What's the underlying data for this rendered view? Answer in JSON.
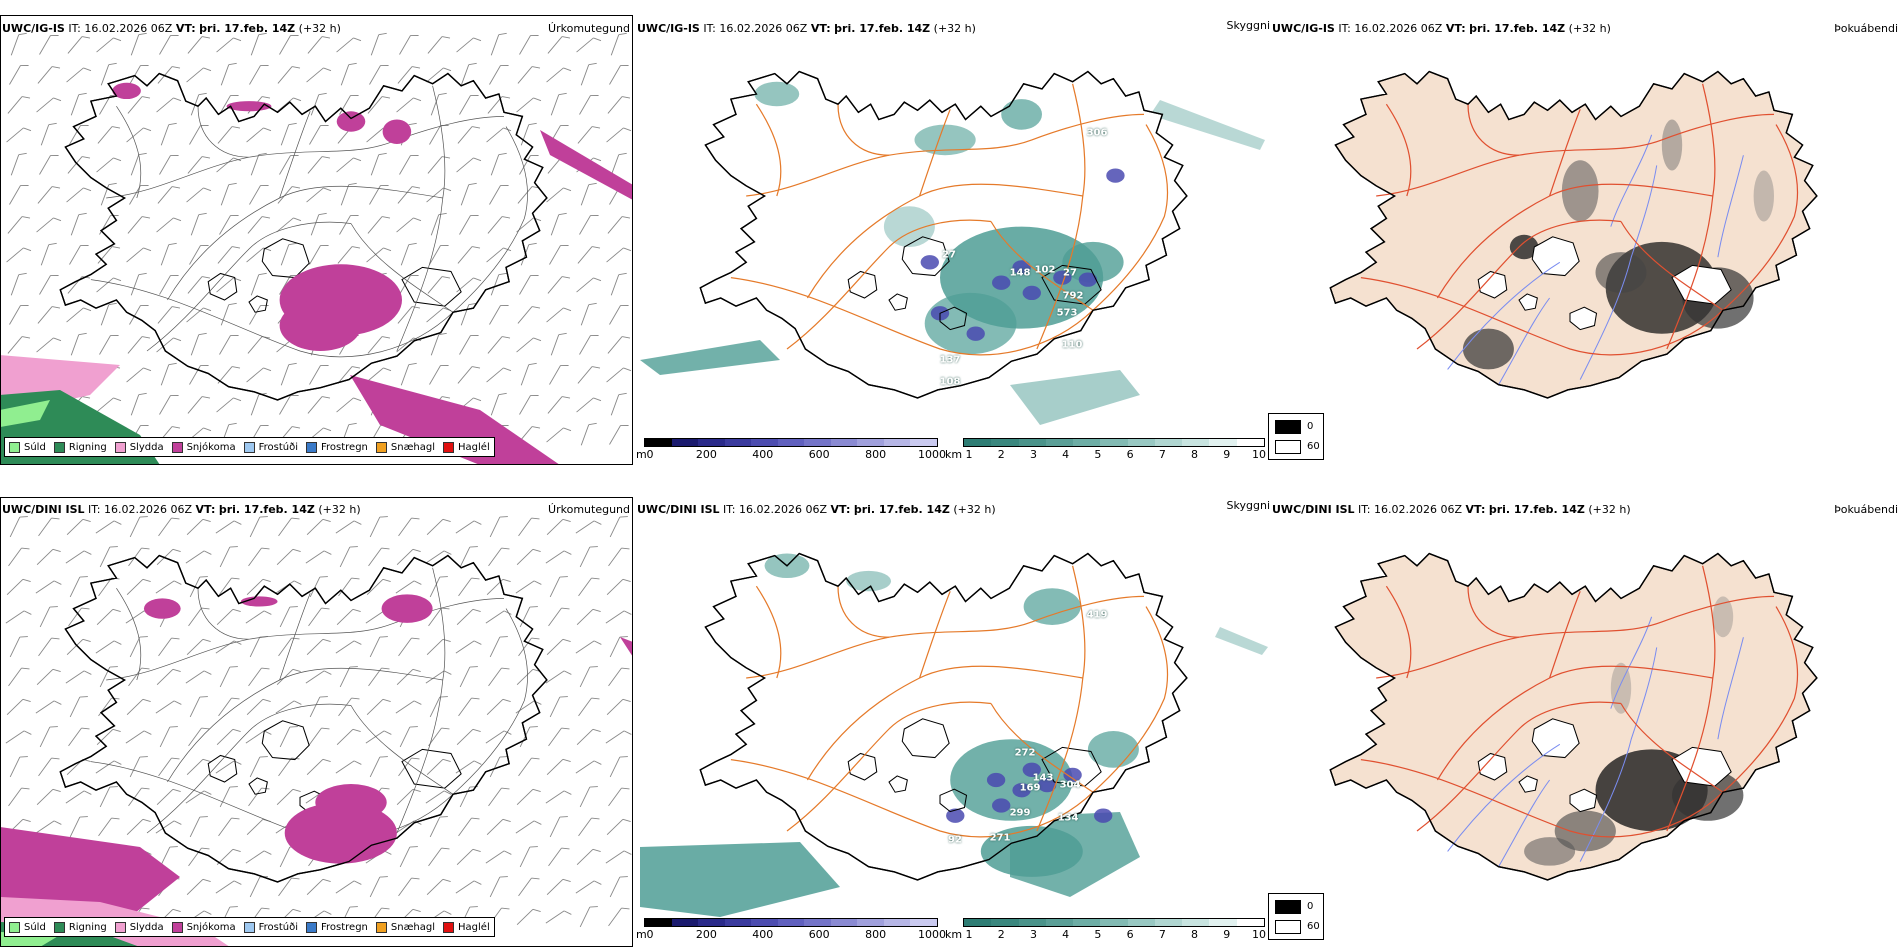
{
  "rows": [
    {
      "model": "UWC/IG-IS",
      "it_label": "IT:",
      "it_value": "16.02.2026 06Z",
      "vt_label": "VT:",
      "vt_value": "þri. 17.feb. 14Z",
      "lead": "(+32 h)",
      "cloud_labels": [
        "306",
        "27",
        "148",
        "102",
        "27",
        "792",
        "573",
        "110",
        "137",
        "108"
      ]
    },
    {
      "model": "UWC/DINI ISL",
      "it_label": "IT:",
      "it_value": "16.02.2026 06Z",
      "vt_label": "VT:",
      "vt_value": "þri. 17.feb. 14Z",
      "lead": "(+32 h)",
      "cloud_labels": [
        "419",
        "272",
        "143",
        "304",
        "169",
        "299",
        "134",
        "271",
        "92"
      ]
    }
  ],
  "panel_titles": {
    "precip": "Úrkomutegund",
    "visibility": "Skyggni",
    "fog": "Þokuábendi"
  },
  "precip_legend": [
    {
      "label": "Súld",
      "color": "#90ee90"
    },
    {
      "label": "Rigning",
      "color": "#2e8b57"
    },
    {
      "label": "Slydda",
      "color": "#f0a0d0"
    },
    {
      "label": "Snjókoma",
      "color": "#c0409a"
    },
    {
      "label": "Frostúði",
      "color": "#9ec8f0"
    },
    {
      "label": "Frostregn",
      "color": "#3a7ac8"
    },
    {
      "label": "Snæhagl",
      "color": "#f0a020"
    },
    {
      "label": "Haglél",
      "color": "#e01010"
    }
  ],
  "cloudbase_scale": {
    "unit": "m",
    "ticks": [
      "0",
      "200",
      "400",
      "600",
      "800",
      "1000"
    ],
    "colors": [
      "#000000",
      "#1a1a6e",
      "#2a2a8a",
      "#3b3b9e",
      "#4d4db0",
      "#6060be",
      "#7474c8",
      "#8a8ad2",
      "#a0a0dc",
      "#b6b6e6",
      "#cacaf0"
    ]
  },
  "visibility_scale": {
    "unit": "km",
    "ticks": [
      "1",
      "2",
      "3",
      "4",
      "5",
      "6",
      "7",
      "8",
      "9",
      "10"
    ],
    "colors": [
      "#2e7d74",
      "#3a877e",
      "#4a938a",
      "#5b9f97",
      "#6dada5",
      "#82bab3",
      "#98c8c2",
      "#b0d6d1",
      "#c8e4e0",
      "#e2f2f0",
      "#ffffff"
    ]
  },
  "fog_legend": {
    "black_label": "0",
    "white_label": "60"
  },
  "colors": {
    "snow": "#c0409a",
    "sleet": "#f0a0d0",
    "rain": "#2e8b57",
    "drizzle": "#90ee90",
    "land_fog": "#f5e1d0",
    "roads": "#e57a2a",
    "rivers": "#7a8cf0",
    "vis_teal": "#4f9e95",
    "cloud_blue": "#4a4ab0"
  }
}
